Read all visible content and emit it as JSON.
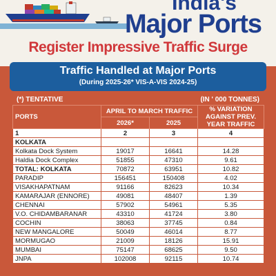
{
  "header": {
    "title_top": "India's",
    "title_main": "Major Ports",
    "title_sub": "Register Impressive Traffic Surge"
  },
  "banner": {
    "title": "Traffic Handled at Major Ports",
    "subtitle": "(During 2025-26* VIS-A-VIS 2024-25)"
  },
  "notes": {
    "tentative": "(*) TENTATIVE",
    "unit": "(IN ' 000 TONNES)"
  },
  "table": {
    "col_ports": "PORTS",
    "col_period": "APRIL TO MARCH TRAFFIC",
    "col_variation": "% VARIATION AGAINST PREV. YEAR TRAFFIC",
    "col_2026": "2026*",
    "col_2025": "2025",
    "idx": [
      "1",
      "2",
      "3",
      "4"
    ],
    "rows": [
      {
        "port": "KOLKATA",
        "y2026": "",
        "y2025": "",
        "var": ""
      },
      {
        "port": "Kolkata Dock System",
        "y2026": "19017",
        "y2025": "16641",
        "var": "14.28"
      },
      {
        "port": "Haldia Dock Complex",
        "y2026": "51855",
        "y2025": "47310",
        "var": "9.61"
      },
      {
        "port": "TOTAL: KOLKATA",
        "y2026": "70872",
        "y2025": "63951",
        "var": "10.82"
      },
      {
        "port": "PARADIP",
        "y2026": "156451",
        "y2025": "150408",
        "var": "4.02"
      },
      {
        "port": "VISAKHAPATNAM",
        "y2026": "91166",
        "y2025": "82623",
        "var": "10.34"
      },
      {
        "port": "KAMARAJAR (ENNORE)",
        "y2026": "49081",
        "y2025": "48407",
        "var": "1.39"
      },
      {
        "port": "CHENNAI",
        "y2026": "57902",
        "y2025": "54961",
        "var": "5.35"
      },
      {
        "port": "V.O. CHIDAMBARANAR",
        "y2026": "43310",
        "y2025": "41724",
        "var": "3.80"
      },
      {
        "port": "COCHIN",
        "y2026": "38063",
        "y2025": "37745",
        "var": "0.84"
      },
      {
        "port": "NEW MANGALORE",
        "y2026": "50049",
        "y2025": "46014",
        "var": "8.77"
      },
      {
        "port": "MORMUGAO",
        "y2026": "21009",
        "y2025": "18126",
        "var": "15.91"
      },
      {
        "port": "MUMBAI",
        "y2026": "75147",
        "y2025": "68625",
        "var": "9.50"
      },
      {
        "port": "JNPA",
        "y2026": "102008",
        "y2025": "92115",
        "var": "10.74"
      }
    ]
  }
}
